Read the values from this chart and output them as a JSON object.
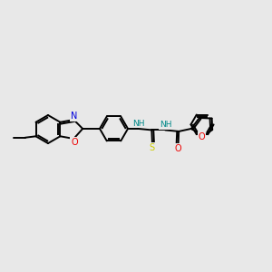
{
  "background_color": "#e8e8e8",
  "bond_color": "#000000",
  "atom_colors": {
    "N": "#0000dd",
    "O": "#ee0000",
    "S": "#cccc00",
    "H": "#008888"
  },
  "figsize": [
    3.0,
    3.0
  ],
  "dpi": 100,
  "lw": 1.4,
  "fs": 7.0
}
